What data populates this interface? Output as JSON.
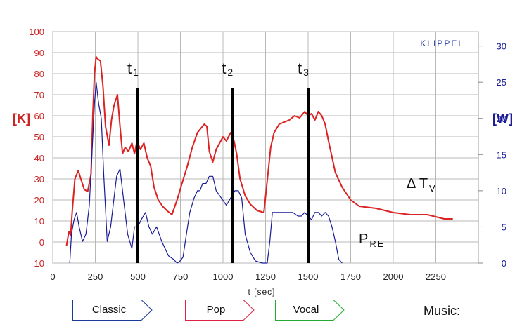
{
  "chart_data": {
    "type": "line",
    "brand": "KLIPPEL",
    "xlabel": "t [sec]",
    "ylabel_left": "[K]",
    "ylabel_right": "[W]",
    "xlim": [
      0,
      2500
    ],
    "ylim_left": [
      -10,
      100
    ],
    "ylim_right": [
      0,
      32
    ],
    "x_ticks": [
      0,
      250,
      500,
      750,
      1000,
      1250,
      1500,
      1750,
      2000,
      2250
    ],
    "y_ticks_left": [
      -10,
      0,
      10,
      20,
      30,
      40,
      50,
      60,
      70,
      80,
      90,
      100
    ],
    "y_ticks_right": [
      0,
      5,
      10,
      15,
      20,
      25,
      30
    ],
    "grid": true,
    "colors": {
      "left_axis": "#cc2222",
      "right_axis": "#1a1a99",
      "temperature": "#dd2222",
      "power": "#1a1a99",
      "marker": "#000000"
    },
    "series": [
      {
        "name": "ΔT_V",
        "label_main": "Δ T",
        "label_sub": "V",
        "axis": "left",
        "x": [
          80,
          95,
          105,
          115,
          130,
          150,
          165,
          185,
          205,
          225,
          235,
          245,
          255,
          265,
          280,
          295,
          310,
          330,
          345,
          360,
          380,
          395,
          410,
          425,
          445,
          465,
          480,
          495,
          515,
          535,
          555,
          575,
          595,
          620,
          645,
          670,
          700,
          730,
          760,
          790,
          820,
          850,
          870,
          890,
          905,
          920,
          940,
          960,
          980,
          1000,
          1020,
          1045,
          1065,
          1080,
          1100,
          1130,
          1160,
          1200,
          1240,
          1265,
          1280,
          1300,
          1330,
          1360,
          1390,
          1420,
          1450,
          1480,
          1500,
          1520,
          1540,
          1560,
          1580,
          1600,
          1620,
          1660,
          1700,
          1750,
          1800,
          1900,
          2000,
          2100,
          2200,
          2250,
          2300,
          2330,
          2350
        ],
        "y": [
          -2,
          5,
          3,
          15,
          30,
          34,
          30,
          25,
          24,
          32,
          60,
          80,
          88,
          87,
          86,
          74,
          55,
          46,
          58,
          65,
          70,
          55,
          42,
          45,
          43,
          47,
          42,
          48,
          44,
          47,
          40,
          36,
          26,
          20,
          17,
          15,
          13,
          20,
          28,
          36,
          45,
          52,
          54,
          56,
          55,
          43,
          38,
          44,
          47,
          50,
          48,
          52,
          48,
          42,
          30,
          22,
          18,
          15,
          14,
          33,
          45,
          52,
          56,
          57,
          58,
          60,
          59,
          62,
          60,
          61,
          58,
          62,
          60,
          56,
          48,
          33,
          26,
          20,
          17,
          16,
          14,
          13,
          13,
          12,
          11,
          11,
          11
        ]
      },
      {
        "name": "P_RE",
        "label_main": "P",
        "label_sub": "RE",
        "axis": "right",
        "x": [
          100,
          110,
          125,
          140,
          155,
          175,
          195,
          215,
          230,
          245,
          255,
          270,
          285,
          300,
          320,
          340,
          360,
          375,
          395,
          415,
          440,
          465,
          480,
          500,
          520,
          545,
          565,
          585,
          610,
          640,
          680,
          710,
          730,
          745,
          765,
          785,
          805,
          830,
          850,
          865,
          880,
          900,
          920,
          940,
          960,
          990,
          1020,
          1045,
          1070,
          1090,
          1110,
          1130,
          1160,
          1190,
          1230,
          1260,
          1275,
          1290,
          1320,
          1350,
          1380,
          1410,
          1440,
          1460,
          1480,
          1500,
          1520,
          1540,
          1560,
          1580,
          1600,
          1620,
          1640,
          1660,
          1680,
          1700
        ],
        "y": [
          0,
          4,
          6,
          7,
          5,
          3,
          4,
          8,
          15,
          22,
          25,
          22,
          20,
          12,
          3,
          5,
          9,
          12,
          13,
          9,
          4,
          2,
          5,
          5,
          6,
          7,
          5,
          4,
          5,
          3,
          1,
          0.5,
          0,
          0.2,
          0.8,
          4,
          7,
          9,
          10,
          10,
          11,
          11,
          12,
          12,
          10,
          9,
          8,
          9,
          10,
          10,
          9,
          4,
          1.5,
          0.3,
          0,
          0,
          3,
          7,
          7,
          7,
          7,
          7,
          6.5,
          6.5,
          7,
          6.5,
          6,
          7,
          7,
          6.5,
          7,
          6.5,
          5,
          3,
          0.5,
          0
        ]
      }
    ],
    "markers": [
      {
        "label": "t",
        "sub": "1",
        "x": 500
      },
      {
        "label": "t",
        "sub": "2",
        "x": 1055
      },
      {
        "label": "t",
        "sub": "3",
        "x": 1500
      }
    ],
    "music": {
      "title": "Music:",
      "segments": [
        {
          "label": "Classic",
          "color": "#1a3a99"
        },
        {
          "label": "Pop",
          "color": "#dd2244"
        },
        {
          "label": "Vocal",
          "color": "#22aa33"
        }
      ]
    }
  }
}
